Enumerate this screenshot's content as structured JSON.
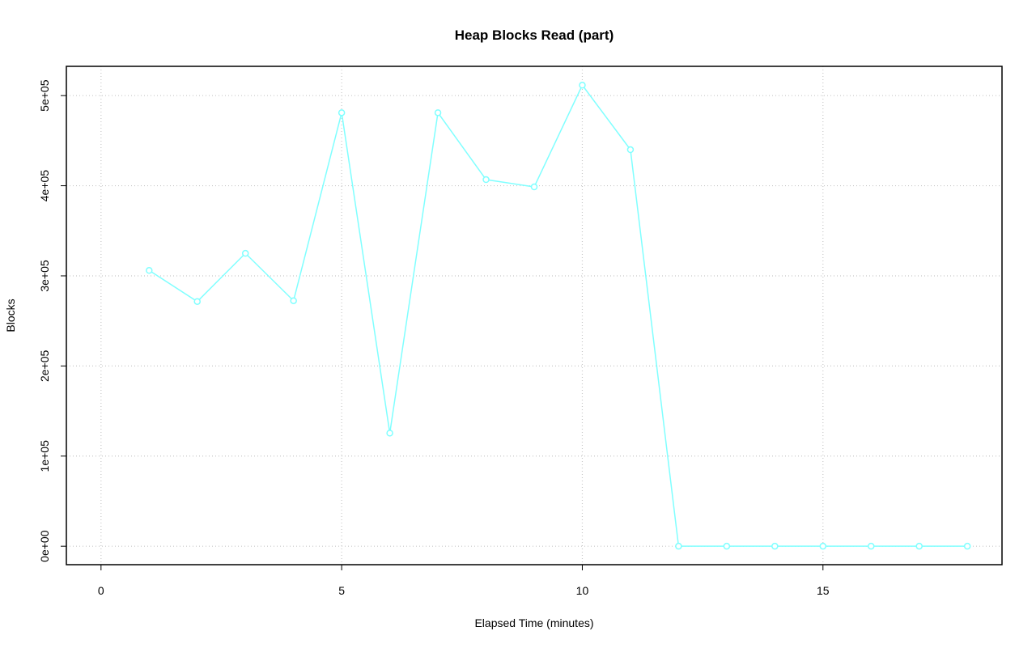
{
  "chart_data": {
    "type": "line",
    "title": "Heap Blocks Read (part)",
    "x_label": "Elapsed Time (minutes)",
    "y_label": "Blocks",
    "x": [
      1,
      2,
      3,
      4,
      5,
      6,
      7,
      8,
      9,
      10,
      11,
      12,
      13,
      14,
      15,
      16,
      17,
      18
    ],
    "series": [
      {
        "name": "Heap Blocks Read",
        "color": "#80ffff",
        "values": [
          306000,
          271500,
          325000,
          272400,
          481000,
          125500,
          481000,
          406800,
          398700,
          511600,
          440000,
          0,
          0,
          0,
          0,
          0,
          0,
          0
        ]
      }
    ],
    "xlim": [
      -0.72,
      18.72
    ],
    "xticks": [
      0,
      5,
      10,
      15
    ],
    "ylim": [
      -20480,
      532480
    ],
    "yticks": [
      {
        "value": 0,
        "label": "0e+00"
      },
      {
        "value": 100000,
        "label": "1e+05"
      },
      {
        "value": 200000,
        "label": "2e+05"
      },
      {
        "value": 300000,
        "label": "3e+05"
      },
      {
        "value": 400000,
        "label": "4e+05"
      },
      {
        "value": 500000,
        "label": "5e+05"
      }
    ],
    "grid": true
  }
}
